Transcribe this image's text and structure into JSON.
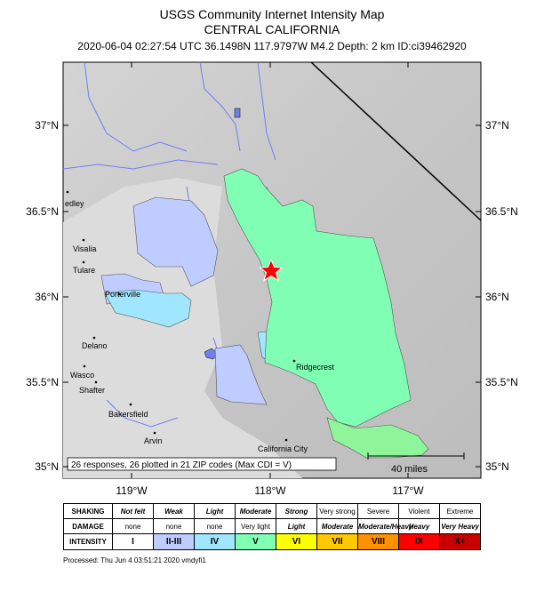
{
  "title": {
    "line1": "USGS Community Internet Intensity Map",
    "line2": "CENTRAL CALIFORNIA",
    "line3": "2020-06-04 02:27:54 UTC 36.1498N 117.9797W M4.2 Depth: 2 km ID:ci39462920"
  },
  "map": {
    "lat_labels": [
      "37°N",
      "36.5°N",
      "36°N",
      "35.5°N",
      "35°N"
    ],
    "lon_labels": [
      "119°W",
      "118°W",
      "117°W"
    ],
    "cities": [
      "edley",
      "Visalia",
      "Tulare",
      "Porterville",
      "Delano",
      "Wasco",
      "Shafter",
      "Bakersfield",
      "Arvin",
      "Ridgecrest",
      "California City"
    ],
    "summary": "26 responses, 26 plotted in 21 ZIP codes (Max CDI = V)",
    "scale": "40 miles",
    "epicenter_icon": "star-icon",
    "colors": {
      "weak": "#bfccff",
      "light": "#a0e6ff",
      "moderate": "#80ffb4",
      "strong_green": "#8ff59a",
      "epicenter": "#ff0000",
      "water": "#6f7ff0"
    }
  },
  "legend": {
    "headers": [
      "SHAKING",
      "DAMAGE",
      "INTENSITY"
    ],
    "shaking": [
      "Not felt",
      "Weak",
      "Light",
      "Moderate",
      "Strong",
      "Very strong",
      "Severe",
      "Violent",
      "Extreme"
    ],
    "damage": [
      "none",
      "none",
      "none",
      "Very light",
      "Light",
      "Moderate",
      "Moderate/Heavy",
      "Heavy",
      "Very Heavy"
    ],
    "intensity": [
      "I",
      "II-III",
      "IV",
      "V",
      "VI",
      "VII",
      "VIII",
      "IX",
      "X+"
    ],
    "intensity_colors": [
      "#ffffff",
      "#bfccff",
      "#a0e6ff",
      "#80ffb4",
      "#ffff00",
      "#ffc800",
      "#ff9100",
      "#ff0000",
      "#c80000"
    ]
  },
  "footer": {
    "processed": "Processed: Thu Jun  4 03:51:21 2020 vmdyfi1"
  }
}
